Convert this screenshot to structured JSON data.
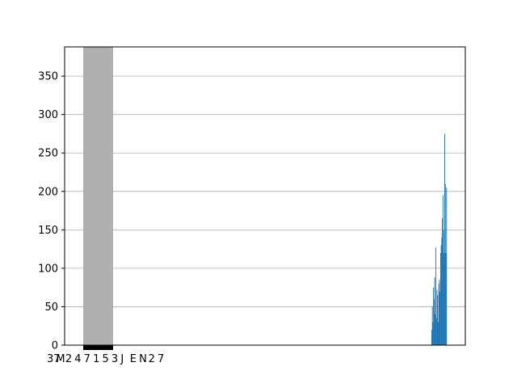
{
  "colors": {
    "background": "#ffffff",
    "bar": "#1f77b4",
    "overlay": "#b0b0b0",
    "overlay_ticks": "#000000",
    "grid": "#b0b0b0",
    "axis": "#000000"
  },
  "chart_data": {
    "type": "bar",
    "title": "",
    "xlabel": "",
    "ylabel": "",
    "ylim": [
      0,
      388
    ],
    "grid": {
      "y": true,
      "x": false
    },
    "y_ticks": [
      0,
      50,
      100,
      150,
      200,
      250,
      300,
      350
    ],
    "x_tick_labels": [
      "37",
      "M",
      "2",
      "4",
      "7",
      "1",
      "5",
      "3",
      "J",
      "E",
      "N",
      "2",
      "7"
    ],
    "overlay_band": {
      "label": "grey column covering the tick-label area",
      "value": 388
    },
    "series": [
      {
        "values": [
          20,
          50,
          30,
          75,
          60,
          88,
          40,
          127,
          35,
          72,
          65,
          30,
          80,
          85,
          70,
          120,
          130,
          140,
          165,
          195,
          150,
          120,
          275,
          210,
          120,
          205
        ]
      }
    ]
  }
}
